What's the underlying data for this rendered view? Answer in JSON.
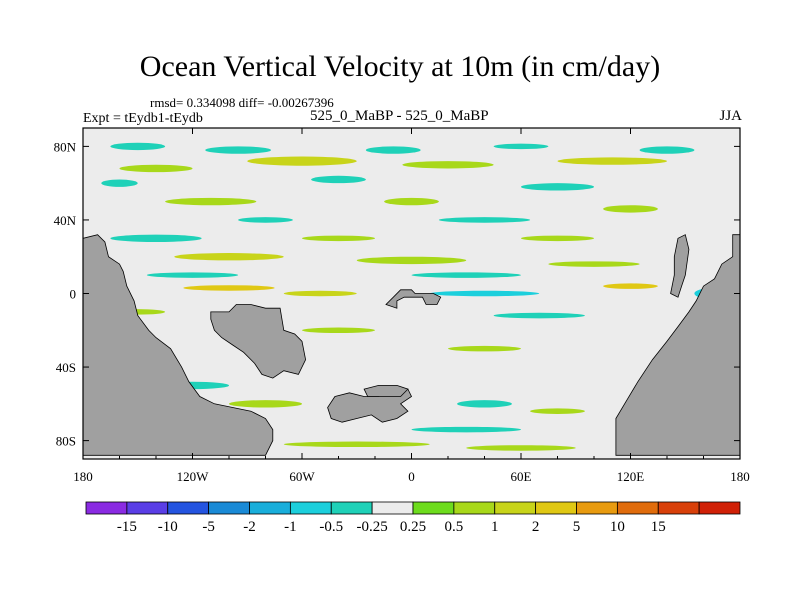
{
  "title": "Ocean Vertical Velocity at 10m (in cm/day)",
  "stats": {
    "rmsd_label": "rmsd=",
    "rmsd": "0.334098",
    "diff_label": "diff=",
    "diff": "-0.00267396"
  },
  "expt_label": "Expt = tEydb1-tEydb",
  "period_label": "525_0_MaBP - 525_0_MaBP",
  "season": "JJA",
  "colors": {
    "land": "#a0a0a0",
    "ocean_neutral": "#ececec",
    "bins": [
      "#8a2be2",
      "#5a3ee6",
      "#2454e0",
      "#1a8ad6",
      "#19aedb",
      "#1ccfdc",
      "#1fd1b8",
      "#ececec",
      "#6ddc1d",
      "#a8d81a",
      "#c8d41a",
      "#e0c814",
      "#e89b10",
      "#e06c0c",
      "#d8400a",
      "#d02006"
    ]
  },
  "chart_data": {
    "type": "heatmap",
    "title": "Ocean Vertical Velocity at 10m (in cm/day)",
    "x_axis": {
      "range": [
        -180,
        180
      ],
      "tick_values": [
        -180,
        -120,
        -60,
        0,
        60,
        120,
        180
      ],
      "tick_labels": [
        "180",
        "120W",
        "60W",
        "0",
        "60E",
        "120E",
        "180"
      ]
    },
    "y_axis": {
      "range": [
        -90,
        90
      ],
      "tick_values": [
        80,
        40,
        0,
        -40,
        -80
      ],
      "tick_labels": [
        "80N",
        "40N",
        "0",
        "40S",
        "80S"
      ]
    },
    "colorbar": {
      "levels": [
        "-15",
        "-10",
        "-5",
        "-2",
        "-1",
        "-0.5",
        "-0.25",
        "0.25",
        "0.5",
        "1",
        "2",
        "5",
        "10",
        "15"
      ],
      "level_values": [
        -15,
        -10,
        -5,
        -2,
        -1,
        -0.5,
        -0.25,
        0.25,
        0.5,
        1,
        2,
        5,
        10,
        15
      ]
    },
    "land_masses": [
      {
        "name": "west-continent",
        "lonlat": [
          [
            -180,
            30
          ],
          [
            -172,
            32
          ],
          [
            -168,
            28
          ],
          [
            -166,
            20
          ],
          [
            -160,
            16
          ],
          [
            -158,
            12
          ],
          [
            -156,
            4
          ],
          [
            -152,
            -4
          ],
          [
            -150,
            -12
          ],
          [
            -144,
            -20
          ],
          [
            -140,
            -24
          ],
          [
            -132,
            -30
          ],
          [
            -126,
            -40
          ],
          [
            -122,
            -48
          ],
          [
            -116,
            -56
          ],
          [
            -108,
            -60
          ],
          [
            -98,
            -62
          ],
          [
            -88,
            -64
          ],
          [
            -80,
            -68
          ],
          [
            -76,
            -74
          ],
          [
            -76,
            -80
          ],
          [
            -80,
            -88
          ],
          [
            -180,
            -88
          ]
        ]
      },
      {
        "name": "central-island",
        "lonlat": [
          [
            -110,
            -10
          ],
          [
            -100,
            -10
          ],
          [
            -96,
            -6
          ],
          [
            -88,
            -6
          ],
          [
            -80,
            -8
          ],
          [
            -72,
            -8
          ],
          [
            -70,
            -20
          ],
          [
            -64,
            -22
          ],
          [
            -60,
            -26
          ],
          [
            -58,
            -36
          ],
          [
            -62,
            -44
          ],
          [
            -70,
            -42
          ],
          [
            -76,
            -46
          ],
          [
            -82,
            -44
          ],
          [
            -86,
            -38
          ],
          [
            -92,
            -32
          ],
          [
            -98,
            -28
          ],
          [
            -104,
            -24
          ],
          [
            -108,
            -20
          ],
          [
            -110,
            -14
          ]
        ]
      },
      {
        "name": "equatorial-island",
        "lonlat": [
          [
            -14,
            -6
          ],
          [
            -8,
            -8
          ],
          [
            -8,
            -4
          ],
          [
            -4,
            -2
          ],
          [
            0,
            -2
          ],
          [
            6,
            -2
          ],
          [
            8,
            -6
          ],
          [
            14,
            -6
          ],
          [
            16,
            -2
          ],
          [
            12,
            0
          ],
          [
            2,
            0
          ],
          [
            0,
            2
          ],
          [
            -6,
            2
          ],
          [
            -10,
            -2
          ]
        ]
      },
      {
        "name": "southern-island",
        "lonlat": [
          [
            -42,
            -56
          ],
          [
            -34,
            -54
          ],
          [
            -26,
            -56
          ],
          [
            -18,
            -56
          ],
          [
            -10,
            -52
          ],
          [
            -2,
            -52
          ],
          [
            0,
            -56
          ],
          [
            -6,
            -60
          ],
          [
            -2,
            -64
          ],
          [
            -8,
            -68
          ],
          [
            -16,
            -70
          ],
          [
            -22,
            -66
          ],
          [
            -30,
            -68
          ],
          [
            -38,
            -70
          ],
          [
            -44,
            -68
          ],
          [
            -46,
            -62
          ]
        ]
      },
      {
        "name": "inner-islet",
        "lonlat": [
          [
            -26,
            -52
          ],
          [
            -18,
            -50
          ],
          [
            -8,
            -50
          ],
          [
            -2,
            -52
          ],
          [
            -6,
            -56
          ],
          [
            -16,
            -56
          ],
          [
            -24,
            -56
          ]
        ]
      },
      {
        "name": "east-continent",
        "lonlat": [
          [
            180,
            32
          ],
          [
            176,
            32
          ],
          [
            176,
            20
          ],
          [
            170,
            16
          ],
          [
            166,
            8
          ],
          [
            160,
            4
          ],
          [
            156,
            -4
          ],
          [
            152,
            -10
          ],
          [
            146,
            -18
          ],
          [
            140,
            -26
          ],
          [
            132,
            -36
          ],
          [
            124,
            -48
          ],
          [
            118,
            -58
          ],
          [
            112,
            -68
          ],
          [
            112,
            -88
          ],
          [
            180,
            -88
          ]
        ]
      },
      {
        "name": "east-peninsula",
        "lonlat": [
          [
            146,
            30
          ],
          [
            150,
            32
          ],
          [
            152,
            24
          ],
          [
            150,
            10
          ],
          [
            148,
            4
          ],
          [
            146,
            -2
          ],
          [
            142,
            0
          ],
          [
            144,
            10
          ],
          [
            144,
            20
          ]
        ]
      }
    ],
    "anomaly_patches": [
      {
        "lon": -140,
        "lat": 68,
        "w": 40,
        "h": 4,
        "level": 0.5
      },
      {
        "lon": -60,
        "lat": 72,
        "w": 60,
        "h": 5,
        "level": 1
      },
      {
        "lon": 20,
        "lat": 70,
        "w": 50,
        "h": 4,
        "level": 0.5
      },
      {
        "lon": 110,
        "lat": 72,
        "w": 60,
        "h": 4,
        "level": 1
      },
      {
        "lon": -150,
        "lat": 80,
        "w": 30,
        "h": 4,
        "level": -0.5
      },
      {
        "lon": -95,
        "lat": 78,
        "w": 36,
        "h": 4,
        "level": -0.5
      },
      {
        "lon": -10,
        "lat": 78,
        "w": 30,
        "h": 4,
        "level": -0.5
      },
      {
        "lon": 60,
        "lat": 80,
        "w": 30,
        "h": 3,
        "level": -0.5
      },
      {
        "lon": 140,
        "lat": 78,
        "w": 30,
        "h": 4,
        "level": -0.5
      },
      {
        "lon": -160,
        "lat": 60,
        "w": 20,
        "h": 4,
        "level": -0.5
      },
      {
        "lon": -40,
        "lat": 62,
        "w": 30,
        "h": 4,
        "level": -0.5
      },
      {
        "lon": 80,
        "lat": 58,
        "w": 40,
        "h": 4,
        "level": -0.5
      },
      {
        "lon": -110,
        "lat": 50,
        "w": 50,
        "h": 4,
        "level": 0.5
      },
      {
        "lon": 0,
        "lat": 50,
        "w": 30,
        "h": 4,
        "level": 0.5
      },
      {
        "lon": 120,
        "lat": 46,
        "w": 30,
        "h": 4,
        "level": 0.5
      },
      {
        "lon": -80,
        "lat": 40,
        "w": 30,
        "h": 3,
        "level": -0.5
      },
      {
        "lon": 40,
        "lat": 40,
        "w": 50,
        "h": 3,
        "level": -0.5
      },
      {
        "lon": -140,
        "lat": 30,
        "w": 50,
        "h": 4,
        "level": -0.5
      },
      {
        "lon": -40,
        "lat": 30,
        "w": 40,
        "h": 3,
        "level": 0.5
      },
      {
        "lon": 80,
        "lat": 30,
        "w": 40,
        "h": 3,
        "level": 0.5
      },
      {
        "lon": -100,
        "lat": 20,
        "w": 60,
        "h": 4,
        "level": 1
      },
      {
        "lon": 0,
        "lat": 18,
        "w": 60,
        "h": 4,
        "level": 0.5
      },
      {
        "lon": 100,
        "lat": 16,
        "w": 50,
        "h": 3,
        "level": 0.5
      },
      {
        "lon": -120,
        "lat": 10,
        "w": 50,
        "h": 3,
        "level": -0.5
      },
      {
        "lon": 30,
        "lat": 10,
        "w": 60,
        "h": 3,
        "level": -0.5
      },
      {
        "lon": -100,
        "lat": 3,
        "w": 50,
        "h": 3,
        "level": 2
      },
      {
        "lon": -50,
        "lat": 0,
        "w": 40,
        "h": 3,
        "level": 1
      },
      {
        "lon": 40,
        "lat": 0,
        "w": 60,
        "h": 3,
        "level": -1
      },
      {
        "lon": 120,
        "lat": 4,
        "w": 30,
        "h": 3,
        "level": 2
      },
      {
        "lon": 165,
        "lat": 0,
        "w": 20,
        "h": 6,
        "level": -1
      },
      {
        "lon": -150,
        "lat": -10,
        "w": 30,
        "h": 3,
        "level": 0.5
      },
      {
        "lon": 70,
        "lat": -12,
        "w": 50,
        "h": 3,
        "level": -0.5
      },
      {
        "lon": -40,
        "lat": -20,
        "w": 40,
        "h": 3,
        "level": 0.5
      },
      {
        "lon": 40,
        "lat": -30,
        "w": 40,
        "h": 3,
        "level": 0.5
      },
      {
        "lon": -120,
        "lat": -50,
        "w": 40,
        "h": 4,
        "level": -0.5
      },
      {
        "lon": -80,
        "lat": -60,
        "w": 40,
        "h": 4,
        "level": 0.5
      },
      {
        "lon": 40,
        "lat": -60,
        "w": 30,
        "h": 4,
        "level": -0.5
      },
      {
        "lon": 80,
        "lat": -64,
        "w": 30,
        "h": 3,
        "level": 0.5
      },
      {
        "lon": -110,
        "lat": -70,
        "w": 50,
        "h": 3,
        "level": 1
      },
      {
        "lon": 30,
        "lat": -74,
        "w": 60,
        "h": 3,
        "level": -0.5
      },
      {
        "lon": -30,
        "lat": -82,
        "w": 80,
        "h": 3,
        "level": 0.5
      },
      {
        "lon": 60,
        "lat": -84,
        "w": 60,
        "h": 3,
        "level": 0.5
      }
    ]
  }
}
